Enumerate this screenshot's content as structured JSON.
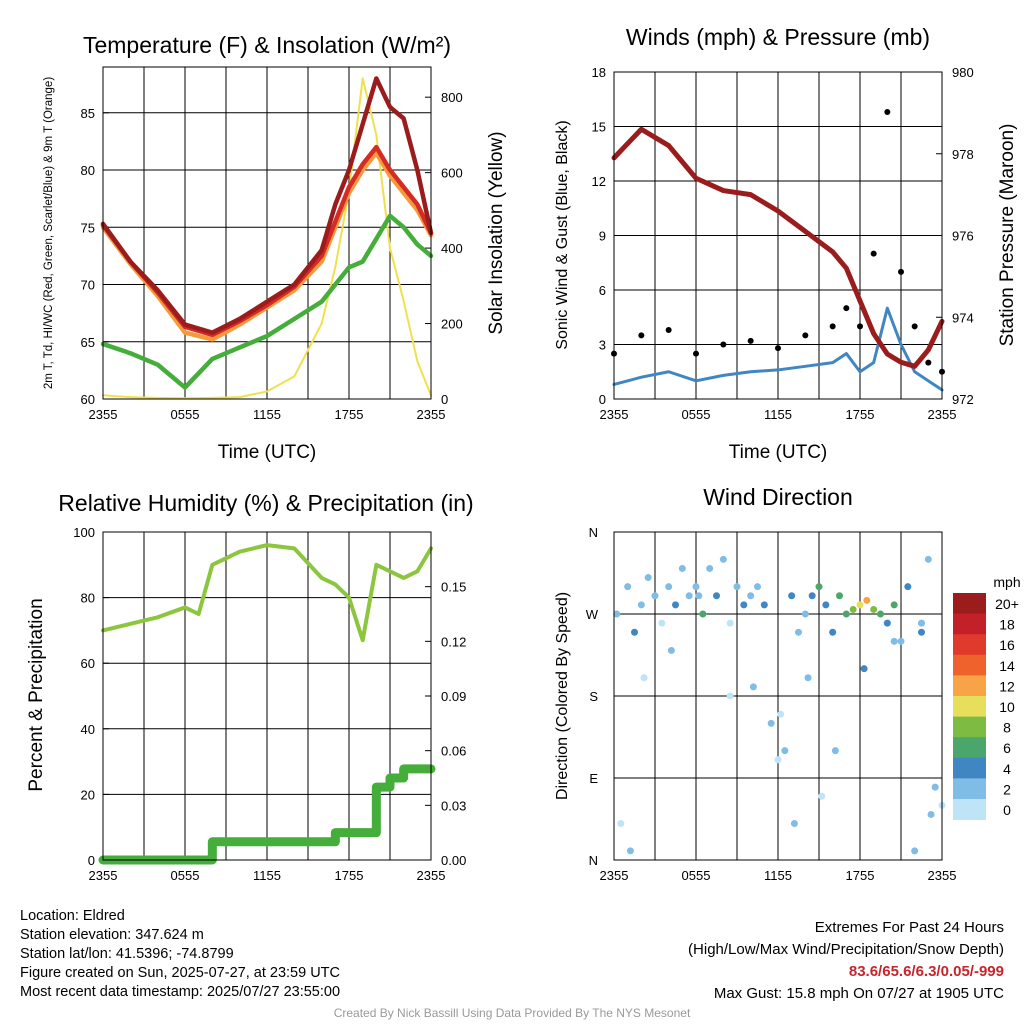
{
  "temperature_panel": {
    "title": "Temperature (F) & Insolation (W/m²)",
    "left_axis_label": "2m T, Td, HI/WC (Red, Green, Scarlet/Blue) & 9m T (Orange)",
    "right_axis_label": "Solar Insolation (Yellow)",
    "x_axis_label": "Time (UTC)"
  },
  "wind_panel": {
    "title": "Winds (mph) & Pressure (mb)",
    "left_axis_label": "Sonic Wind & Gust (Blue, Black)",
    "right_axis_label": "Station Pressure (Maroon)",
    "x_axis_label": "Time (UTC)"
  },
  "rh_panel": {
    "title": "Relative Humidity (%) & Precipitation (in)",
    "left_axis_label": "Percent & Precipitation"
  },
  "direction_panel": {
    "title": "Wind Direction",
    "left_axis_label": "Direction (Colored By Speed)",
    "legend_title": "mph",
    "legend": [
      {
        "label": "20+",
        "color": "#9b1c1c"
      },
      {
        "label": "18",
        "color": "#c4202a"
      },
      {
        "label": "16",
        "color": "#df3a2b"
      },
      {
        "label": "14",
        "color": "#f0622c"
      },
      {
        "label": "12",
        "color": "#f8a346"
      },
      {
        "label": "10",
        "color": "#e7df5c"
      },
      {
        "label": "8",
        "color": "#7dbb43"
      },
      {
        "label": "6",
        "color": "#4aa66a"
      },
      {
        "label": "4",
        "color": "#3f86c3"
      },
      {
        "label": "2",
        "color": "#7fbde6"
      },
      {
        "label": "0",
        "color": "#bfe3f7"
      }
    ]
  },
  "station_info": {
    "location": "Location: Eldred",
    "elevation": "Station elevation: 347.624 m",
    "latlon": "Station lat/lon: 41.5396; -74.8799",
    "created": "Figure created on Sun, 2025-07-27, at 23:59 UTC",
    "recent": "Most recent data timestamp: 2025/07/27 23:55:00"
  },
  "extremes": {
    "title": "Extremes For Past 24 Hours",
    "subtitle": "(High/Low/Max Wind/Precipitation/Snow Depth)",
    "values": "83.6/65.6/6.3/0.05/-999",
    "max_gust": "Max Gust: 15.8 mph On 07/27 at 1905 UTC"
  },
  "credit": "Created By Nick Bassill Using Data Provided By The NYS Mesonet",
  "chart_data": [
    {
      "type": "line",
      "title": "Temperature (F) & Insolation (W/m²)",
      "xlabel": "Time (UTC)",
      "ylabel": "2m T, Td, HI/WC (Red, Green, Scarlet/Blue) & 9m T (Orange)",
      "y2label": "Solar Insolation (Yellow)",
      "ylim": [
        60,
        89
      ],
      "y2lim": [
        0,
        880
      ],
      "yticks": [
        60,
        65,
        70,
        75,
        80,
        85
      ],
      "y2ticks": [
        0,
        200,
        400,
        600,
        800
      ],
      "xticks": [
        "2355",
        "0555",
        "1155",
        "1755",
        "2355"
      ],
      "grid": true,
      "x": [
        0,
        2,
        4,
        6,
        8,
        10,
        12,
        14,
        16,
        17,
        18,
        19,
        20,
        21,
        22,
        23,
        24
      ],
      "series": [
        {
          "color": "#9b1c1c",
          "values": [
            75.3,
            72,
            69.5,
            66.5,
            65.8,
            67,
            68.5,
            70,
            73,
            77,
            80,
            84,
            88,
            85.5,
            84.5,
            80,
            74.5
          ]
        },
        {
          "color": "#d62a25",
          "values": [
            75.2,
            72,
            69.3,
            66.3,
            65.6,
            66.8,
            68.2,
            69.8,
            72.5,
            75.5,
            78.5,
            80.5,
            82,
            80,
            78.5,
            77,
            74.5
          ]
        },
        {
          "color": "#f59a3a",
          "values": [
            75,
            71.8,
            69,
            65.8,
            65.2,
            66.5,
            68,
            69.5,
            72,
            75,
            78,
            80,
            81.5,
            79.5,
            78,
            76.5,
            74.3
          ]
        },
        {
          "color": "#45ad3a",
          "values": [
            64.8,
            64,
            63,
            61,
            63.5,
            64.5,
            65.5,
            67,
            68.5,
            70,
            71.5,
            72,
            74,
            76,
            75,
            73.5,
            72.5
          ]
        },
        {
          "color": "#f1e04d",
          "axis": "y2",
          "values": [
            10,
            5,
            3,
            2,
            3,
            5,
            20,
            60,
            200,
            350,
            550,
            850,
            700,
            400,
            260,
            100,
            10
          ]
        }
      ]
    },
    {
      "type": "line",
      "title": "Winds (mph) & Pressure (mb)",
      "xlabel": "Time (UTC)",
      "ylabel": "Sonic Wind & Gust (Blue, Black)",
      "y2label": "Station Pressure (Maroon)",
      "ylim": [
        0,
        18
      ],
      "y2lim": [
        972,
        980
      ],
      "yticks": [
        0,
        3,
        6,
        9,
        12,
        15,
        18
      ],
      "y2ticks": [
        972,
        974,
        976,
        978,
        980
      ],
      "xticks": [
        "2355",
        "0555",
        "1155",
        "1755",
        "2355"
      ],
      "grid": true,
      "x": [
        0,
        2,
        4,
        6,
        8,
        10,
        12,
        14,
        16,
        17,
        18,
        19,
        20,
        21,
        22,
        23,
        24
      ],
      "series": [
        {
          "color": "#3f86c3",
          "values": [
            0.8,
            1.2,
            1.5,
            1,
            1.3,
            1.5,
            1.6,
            1.8,
            2,
            2.5,
            1.5,
            2,
            5,
            3,
            1.5,
            1,
            0.5
          ]
        },
        {
          "color": "#000000",
          "values": [
            2.5,
            3.5,
            3.8,
            2.5,
            3,
            3.2,
            2.8,
            3.5,
            4,
            5,
            4,
            8,
            15.8,
            7,
            4,
            2,
            1.5
          ]
        },
        {
          "color": "#9b1c1c",
          "axis": "y2",
          "values": [
            977.9,
            978.6,
            978.2,
            977.4,
            977.1,
            977,
            976.6,
            976.1,
            975.6,
            975.2,
            974.4,
            973.6,
            973.1,
            972.9,
            972.8,
            973.2,
            973.9
          ]
        }
      ]
    },
    {
      "type": "line",
      "title": "Relative Humidity (%) & Precipitation (in)",
      "ylabel": "Percent & Precipitation",
      "ylim": [
        0,
        100
      ],
      "y2lim": [
        0,
        0.18
      ],
      "yticks": [
        0,
        20,
        40,
        60,
        80,
        100
      ],
      "y2ticks": [
        0.0,
        0.03,
        0.06,
        0.09,
        0.12,
        0.15
      ],
      "xticks": [
        "2355",
        "0555",
        "1155",
        "1755",
        "2355"
      ],
      "grid": true,
      "x": [
        0,
        2,
        4,
        6,
        7,
        8,
        10,
        12,
        14,
        16,
        17,
        18,
        19,
        20,
        21,
        22,
        23,
        24
      ],
      "series": [
        {
          "color": "#8cc63f",
          "values": [
            70,
            72,
            74,
            77,
            75,
            90,
            94,
            96,
            95,
            86,
            84,
            80,
            67,
            90,
            88,
            86,
            88,
            95
          ]
        },
        {
          "color": "#45ad3a",
          "axis": "y2",
          "values": [
            0,
            0,
            0,
            0,
            0,
            0.01,
            0.01,
            0.01,
            0.01,
            0.01,
            0.015,
            0.015,
            0.015,
            0.04,
            0.045,
            0.05,
            0.05,
            0.05
          ]
        }
      ]
    },
    {
      "type": "scatter",
      "title": "Wind Direction",
      "ylabel": "Direction (Colored By Speed)",
      "ylim": [
        0,
        360
      ],
      "yticks": [
        "N",
        "E",
        "S",
        "W",
        "N"
      ],
      "xticks": [
        "2355",
        "0555",
        "1155",
        "1755",
        "2355"
      ],
      "grid": true,
      "legend": "right",
      "x": [
        0.2,
        0.5,
        1,
        1.5,
        2,
        2.5,
        3,
        3.5,
        4,
        4.5,
        5,
        5.5,
        6,
        6.5,
        7,
        7.5,
        8,
        8.5,
        9,
        9.5,
        10,
        10.5,
        11,
        11.5,
        12,
        12.5,
        13,
        13.5,
        14,
        14.5,
        15,
        15.5,
        16,
        16.5,
        17,
        17.5,
        18,
        18.5,
        19,
        19.5,
        20,
        20.5,
        21,
        21.5,
        22,
        22.5,
        23,
        23.5,
        24,
        1.2,
        2.2,
        4.2,
        6.2,
        8.5,
        10.2,
        12.2,
        13.2,
        14.2,
        15.2,
        16.2,
        18.3,
        20.5,
        22.5,
        23.2
      ],
      "y": [
        270,
        40,
        300,
        250,
        280,
        310,
        290,
        260,
        300,
        280,
        320,
        290,
        300,
        270,
        320,
        290,
        330,
        260,
        300,
        280,
        290,
        300,
        280,
        150,
        110,
        120,
        290,
        250,
        270,
        290,
        300,
        280,
        250,
        290,
        270,
        275,
        280,
        285,
        275,
        270,
        260,
        280,
        240,
        300,
        10,
        250,
        330,
        80,
        60,
        10,
        200,
        230,
        290,
        180,
        190,
        160,
        40,
        200,
        70,
        120,
        210,
        240,
        260,
        50
      ],
      "speed": [
        1,
        0,
        1,
        2,
        1,
        1,
        1,
        0,
        1,
        2,
        1,
        1,
        1,
        3,
        1,
        2,
        1,
        0,
        1,
        2,
        1,
        1,
        2,
        1,
        0,
        1,
        2,
        1,
        1,
        2,
        3,
        2,
        2,
        3,
        3,
        4,
        5,
        6,
        4,
        3,
        2,
        3,
        1,
        2,
        1,
        2,
        1,
        1,
        0,
        1,
        0,
        1,
        1,
        0,
        1,
        0,
        1,
        1,
        0,
        1,
        2,
        1,
        1,
        1
      ]
    }
  ]
}
